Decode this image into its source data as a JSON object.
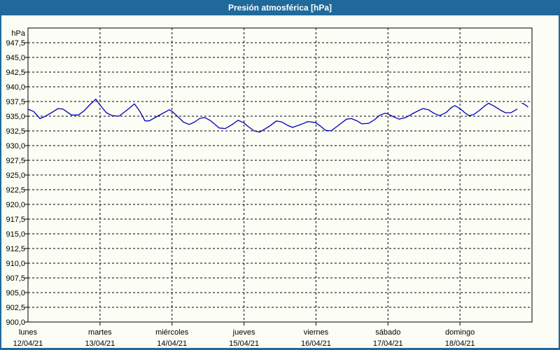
{
  "window": {
    "title": "Presión atmosférica [hPa]"
  },
  "colors": {
    "titlebar_bg": "#1f699b",
    "border": "#1f699b",
    "background": "#fcfdf5",
    "grid": "#000000",
    "line": "#0000b8",
    "text": "#000000",
    "title_text": "#ffffff"
  },
  "chart_data": {
    "type": "line",
    "title": "Presión atmosférica [hPa]",
    "unit_label": "hPa",
    "ylim": [
      900,
      950
    ],
    "ytick_step": 2.5,
    "ytick_labels": [
      "947,5",
      "945,0",
      "942,5",
      "940,0",
      "937,5",
      "935,0",
      "932,5",
      "930,0",
      "927,5",
      "925,0",
      "922,5",
      "920,0",
      "917,5",
      "915,0",
      "912,5",
      "910,0",
      "907,5",
      "905,0",
      "902,5",
      "900,0"
    ],
    "grid": "dashed",
    "legend": "none",
    "x_total_hours": 168,
    "days": [
      {
        "name": "lunes",
        "date": "12/04/21"
      },
      {
        "name": "martes",
        "date": "13/04/21"
      },
      {
        "name": "miércoles",
        "date": "14/04/21"
      },
      {
        "name": "jueves",
        "date": "15/04/21"
      },
      {
        "name": "viernes",
        "date": "16/04/21"
      },
      {
        "name": "sábado",
        "date": "17/04/21"
      },
      {
        "name": "domingo",
        "date": "18/04/21"
      }
    ],
    "series": [
      {
        "name": "Presión atmosférica",
        "color": "#0000b8",
        "segments": [
          [
            [
              0,
              936.2
            ],
            [
              1.9,
              935.8
            ],
            [
              4,
              934.6
            ],
            [
              5.8,
              935
            ],
            [
              8.2,
              935.7
            ],
            [
              10,
              936.3
            ],
            [
              11.7,
              936.2
            ],
            [
              12.8,
              935.8
            ],
            [
              14.5,
              935.2
            ],
            [
              16.8,
              935.2
            ],
            [
              18.7,
              935.9
            ],
            [
              20.5,
              936.9
            ],
            [
              22.6,
              937.9
            ],
            [
              24,
              936.9
            ],
            [
              26.1,
              935.6
            ],
            [
              28,
              935.1
            ],
            [
              30.3,
              935
            ],
            [
              32.7,
              935.9
            ],
            [
              35.5,
              937.1
            ],
            [
              37.3,
              935.8
            ],
            [
              39,
              934.2
            ],
            [
              40.4,
              934.2
            ],
            [
              43.2,
              935
            ],
            [
              47.1,
              936.1
            ],
            [
              48.1,
              935.8
            ],
            [
              50.2,
              934.8
            ],
            [
              51.8,
              934
            ],
            [
              53.7,
              933.6
            ],
            [
              55.5,
              934
            ],
            [
              57.2,
              934.6
            ],
            [
              58.8,
              934.8
            ],
            [
              60.7,
              934.3
            ],
            [
              63.7,
              933
            ],
            [
              65.8,
              932.9
            ],
            [
              68.1,
              933.6
            ],
            [
              70,
              934.3
            ],
            [
              71.9,
              933.9
            ],
            [
              73.5,
              933.2
            ],
            [
              75.4,
              932.5
            ],
            [
              77.2,
              932.3
            ],
            [
              80.5,
              933.3
            ],
            [
              82.8,
              934.2
            ],
            [
              84.7,
              934
            ],
            [
              86.3,
              933.5
            ],
            [
              88.2,
              933.1
            ],
            [
              91,
              933.6
            ],
            [
              93.3,
              934.1
            ],
            [
              95.9,
              933.9
            ],
            [
              97.5,
              933.3
            ],
            [
              99.2,
              932.6
            ],
            [
              101,
              932.5
            ],
            [
              103.4,
              933.4
            ],
            [
              106.2,
              934.5
            ],
            [
              107.8,
              934.6
            ],
            [
              109.7,
              934.2
            ],
            [
              111.3,
              933.7
            ],
            [
              113.6,
              933.8
            ],
            [
              115.5,
              934.4
            ],
            [
              117.4,
              935.2
            ],
            [
              119,
              935.5
            ],
            [
              119.9,
              935.4
            ],
            [
              121.8,
              934.9
            ],
            [
              123.7,
              934.5
            ],
            [
              126,
              934.8
            ],
            [
              128.8,
              935.6
            ],
            [
              131.6,
              936.3
            ],
            [
              133.5,
              936.1
            ],
            [
              135.3,
              935.5
            ],
            [
              137.2,
              935.1
            ],
            [
              139.3,
              935.6
            ],
            [
              141.2,
              936.5
            ],
            [
              142.3,
              936.8
            ],
            [
              144,
              936.3
            ],
            [
              145.6,
              935.6
            ],
            [
              147,
              935.1
            ],
            [
              148.6,
              935.3
            ],
            [
              150.5,
              936
            ],
            [
              152.1,
              936.7
            ],
            [
              153.5,
              937.2
            ],
            [
              155.4,
              936.7
            ],
            [
              157.3,
              936.1
            ],
            [
              159.1,
              935.6
            ],
            [
              161,
              935.6
            ],
            [
              163,
              936.2
            ]
          ],
          [
            [
              164.7,
              937.2
            ],
            [
              165.6,
              937.0
            ],
            [
              166.6,
              936.6
            ]
          ]
        ]
      }
    ]
  }
}
